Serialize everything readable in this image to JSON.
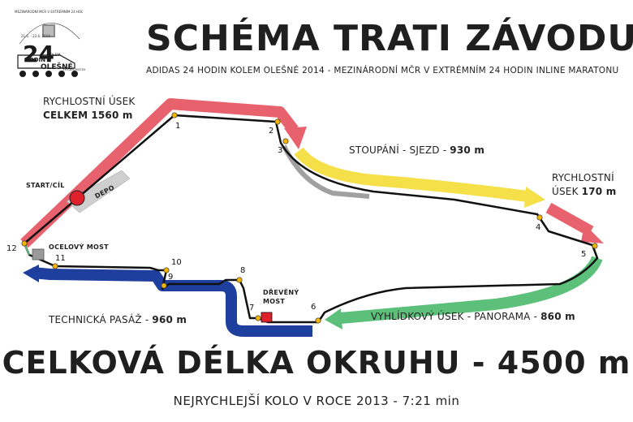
{
  "header": {
    "title": "SCHÉMA TRATI ZÁVODU",
    "subtitle": "ADIDAS 24 HODIN KOLEM OLEŠNÉ 2014 - MEZINÁRODNÍ MČR V EXTRÉMNÍM 24 HODIN INLINE MARATONU"
  },
  "logo": {
    "top_text": "MEZINÁRODNÍ MČR V EXTRÉMNÍM 24 HODIN INLINE MARATONU",
    "number": "24",
    "word_hodin": "HODIN",
    "word_kolem": "KOLEM",
    "word_olesne": "OLEŠNÉ",
    "date_a": "21.6. - 22.6. 2014",
    "date_b": "FRÝDEK-MÍSTEK"
  },
  "sections": {
    "fast_left": {
      "line1": "RYCHLOSTNÍ ÚSEK",
      "line2_prefix": "CELKEM",
      "line2_value": "1560 m"
    },
    "climb": {
      "prefix": "STOUPÁNÍ - SJEZD - ",
      "value": "930 m"
    },
    "fast_right": {
      "line1": "RYCHLOSTNÍ",
      "line2_prefix": "ÚSEK",
      "line2_value": "170 m"
    },
    "panorama": {
      "prefix": "VYHLÍDKOVÝ ÚSEK - PANORAMA - ",
      "value": "860 m"
    },
    "technical": {
      "prefix": "TECHNICKÁ PASÁŽ - ",
      "value": "960 m"
    }
  },
  "features": {
    "start": "START/CÍL",
    "depot": "DEPO",
    "steel_bridge": "OCELOVÝ MOST",
    "wooden_bridge_1": "DŘEVĚNÝ",
    "wooden_bridge_2": "MOST"
  },
  "checkpoints": [
    "1",
    "2",
    "3",
    "4",
    "5",
    "6",
    "7",
    "8",
    "9",
    "10",
    "11",
    "12"
  ],
  "footer": {
    "total": "CELKOVÁ DÉLKA OKRUHU - 4500 m",
    "fastest": "NEJRYCHLEJŠÍ KOLO V ROCE 2013 - 7:21 min"
  },
  "colors": {
    "fast": "#e8626e",
    "climb": "#f5e04a",
    "panorama": "#5cbf7a",
    "technical": "#1f3f9e",
    "start_marker": "#e0202a",
    "wooden_bridge": "#e0202a",
    "checkpoint": "#f2b400"
  }
}
